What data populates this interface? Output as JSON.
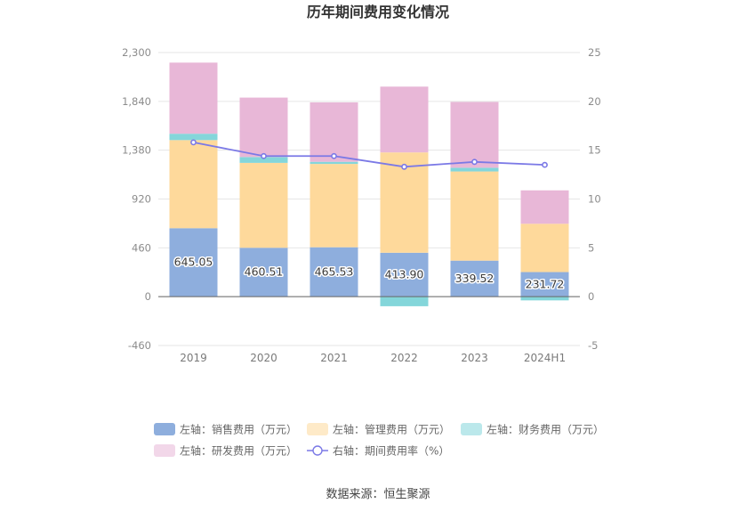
{
  "chart_data": {
    "type": "bar",
    "stacked": true,
    "title": "历年期间费用变化情况",
    "categories": [
      "2019",
      "2020",
      "2021",
      "2022",
      "2023",
      "2024H1"
    ],
    "left_axis": {
      "ticks": [
        "-460",
        "0",
        "460",
        "920",
        "1,380",
        "1,840",
        "2,300"
      ],
      "range": [
        -460,
        2300
      ]
    },
    "right_axis": {
      "ticks": [
        "-5",
        "0",
        "5",
        "10",
        "15",
        "20",
        "25"
      ],
      "range": [
        -5,
        25
      ]
    },
    "series": [
      {
        "name": "左轴：销售费用（万元）",
        "axis": "left",
        "kind": "bar",
        "color": "#8eaedd",
        "values": [
          645.05,
          460.51,
          465.53,
          413.9,
          339.52,
          231.72
        ],
        "labels": [
          "645.05",
          "460.51",
          "465.53",
          "413.90",
          "339.52",
          "231.72"
        ]
      },
      {
        "name": "左轴：管理费用（万元）",
        "axis": "left",
        "kind": "bar",
        "color": "#fed99b",
        "values": [
          830,
          800,
          785,
          945,
          840,
          455
        ]
      },
      {
        "name": "左轴：财务费用（万元）",
        "axis": "left",
        "kind": "bar",
        "color": "#84d6da",
        "values": [
          60,
          55,
          20,
          -90,
          35,
          -35
        ]
      },
      {
        "name": "左轴：研发费用（万元）",
        "axis": "left",
        "kind": "bar",
        "color": "#e8b7d7",
        "values": [
          670,
          560,
          560,
          620,
          620,
          315
        ]
      },
      {
        "name": "右轴：期间费用率（%）",
        "axis": "right",
        "kind": "line",
        "color": "#7b79e6",
        "values": [
          15.8,
          14.4,
          14.4,
          13.3,
          13.8,
          13.5
        ]
      }
    ],
    "legend_position": "bottom",
    "grid": true
  },
  "footer": {
    "source": "数据来源：恒生聚源"
  }
}
